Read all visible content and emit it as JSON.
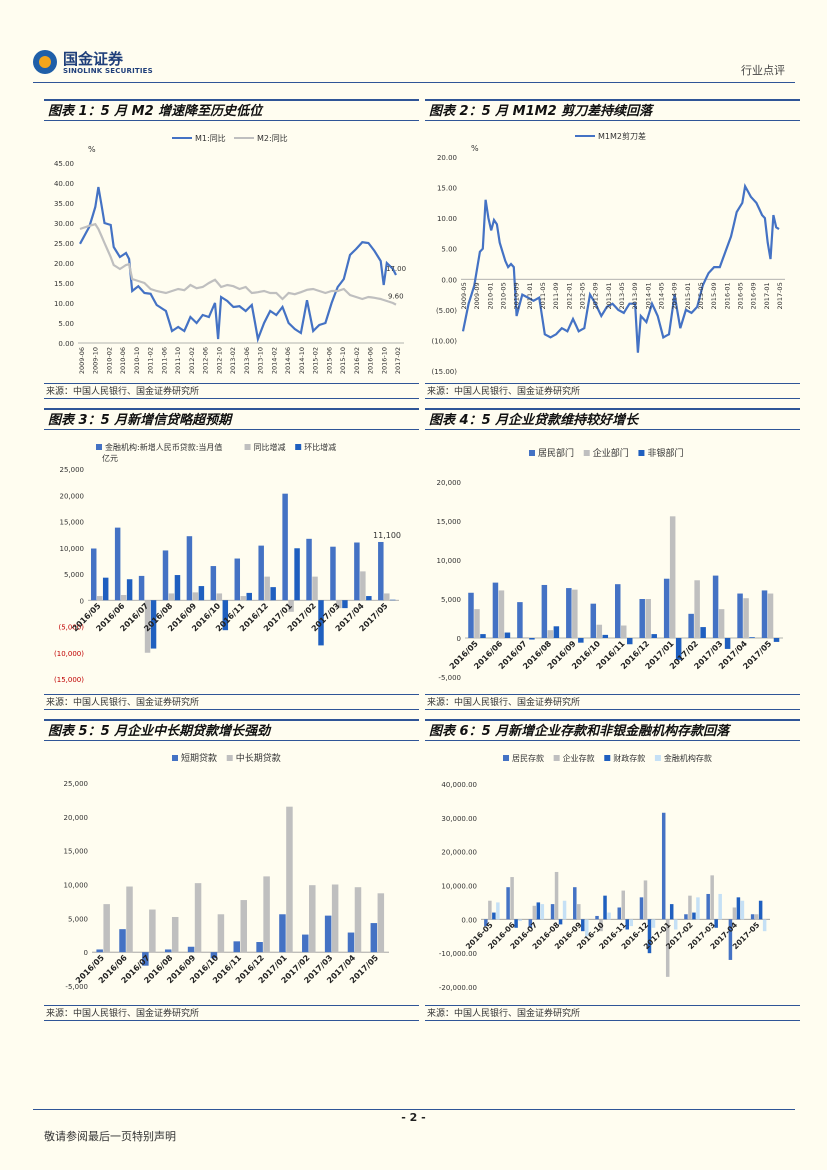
{
  "header": {
    "logo_cn": "国金证券",
    "logo_en": "SINOLINK SECURITIES",
    "doc_type": "行业点评"
  },
  "footer": {
    "page_number": "- 2 -",
    "disclaimer": "敬请参阅最后一页特别声明"
  },
  "source_text": "来源：中国人民银行、国金证券研究所",
  "panels": [
    {
      "title": "图表 1：5 月 M2 增速降至历史低位"
    },
    {
      "title": "图表 2：5 月 M1M2 剪刀差持续回落"
    },
    {
      "title": "图表 3：5 月新增信贷略超预期"
    },
    {
      "title": "图表 4：5 月企业贷款维持较好增长"
    },
    {
      "title": "图表 5：5 月企业中长期贷款增长强劲"
    },
    {
      "title": "图表 6：5 月新增企业存款和非银金融机构存款回落"
    }
  ],
  "chart_data": [
    {
      "type": "line",
      "unit": "%",
      "series_names": [
        "M1:同比",
        "M2:同比"
      ],
      "colors": [
        "#4472c4",
        "#bfbfbf"
      ],
      "ylim": [
        0,
        45
      ],
      "yticks": [
        "0.00",
        "5.00",
        "10.00",
        "15.00",
        "20.00",
        "25.00",
        "30.00",
        "35.00",
        "40.00",
        "45.00"
      ],
      "xticks": [
        "2009-06",
        "2009-10",
        "2010-02",
        "2010-06",
        "2010-10",
        "2011-02",
        "2011-06",
        "2011-10",
        "2012-02",
        "2012-06",
        "2012-10",
        "2013-02",
        "2013-06",
        "2013-10",
        "2014-02",
        "2014-06",
        "2014-10",
        "2015-02",
        "2015-06",
        "2015-10",
        "2016-02",
        "2016-06",
        "2016-10",
        "2017-02"
      ],
      "m1_keypoints": [
        [
          0,
          24.8
        ],
        [
          3,
          29
        ],
        [
          5,
          34
        ],
        [
          6,
          39
        ],
        [
          8,
          30
        ],
        [
          10,
          29.5
        ],
        [
          11,
          24
        ],
        [
          13,
          21.5
        ],
        [
          15,
          22.5
        ],
        [
          16,
          21
        ],
        [
          17,
          13
        ],
        [
          19,
          14.2
        ],
        [
          21,
          12.5
        ],
        [
          23,
          12.3
        ],
        [
          25,
          9.5
        ],
        [
          28,
          8
        ],
        [
          30,
          3
        ],
        [
          32,
          4
        ],
        [
          34,
          3
        ],
        [
          36,
          6.5
        ],
        [
          38,
          5
        ],
        [
          40,
          7
        ],
        [
          42,
          6.5
        ],
        [
          44,
          10
        ],
        [
          45,
          1
        ],
        [
          46,
          11.5
        ],
        [
          48,
          10.5
        ],
        [
          50,
          9
        ],
        [
          52,
          9.2
        ],
        [
          54,
          8
        ],
        [
          56,
          9.5
        ],
        [
          58,
          1
        ],
        [
          60,
          5
        ],
        [
          62,
          8
        ],
        [
          64,
          7
        ],
        [
          66,
          9
        ],
        [
          68,
          5
        ],
        [
          70,
          3.5
        ],
        [
          72,
          2.5
        ],
        [
          74,
          10.7
        ],
        [
          76,
          3
        ],
        [
          78,
          4.5
        ],
        [
          80,
          5
        ],
        [
          82,
          10
        ],
        [
          84,
          14
        ],
        [
          86,
          16
        ],
        [
          88,
          22
        ],
        [
          90,
          23.5
        ],
        [
          92,
          25.2
        ],
        [
          94,
          25
        ],
        [
          96,
          23
        ],
        [
          98,
          20.5
        ],
        [
          99,
          14.5
        ],
        [
          100,
          20
        ],
        [
          102,
          18.5
        ],
        [
          103,
          17
        ]
      ],
      "m2_keypoints": [
        [
          0,
          28.5
        ],
        [
          3,
          29.3
        ],
        [
          5,
          29.7
        ],
        [
          6,
          28.5
        ],
        [
          8,
          25
        ],
        [
          10,
          21.5
        ],
        [
          11,
          19.5
        ],
        [
          13,
          18.5
        ],
        [
          15,
          19.5
        ],
        [
          16,
          19.7
        ],
        [
          17,
          16
        ],
        [
          19,
          15.5
        ],
        [
          21,
          15
        ],
        [
          23,
          13.5
        ],
        [
          25,
          13
        ],
        [
          28,
          12.5
        ],
        [
          30,
          13
        ],
        [
          32,
          13.5
        ],
        [
          34,
          13.2
        ],
        [
          36,
          14.5
        ],
        [
          38,
          13.7
        ],
        [
          40,
          14
        ],
        [
          42,
          15
        ],
        [
          44,
          15.8
        ],
        [
          46,
          14
        ],
        [
          48,
          14.5
        ],
        [
          50,
          14.2
        ],
        [
          52,
          13.5
        ],
        [
          54,
          14
        ],
        [
          56,
          12.5
        ],
        [
          58,
          12.7
        ],
        [
          60,
          13
        ],
        [
          62,
          12.5
        ],
        [
          64,
          12.5
        ],
        [
          66,
          11
        ],
        [
          68,
          12.5
        ],
        [
          70,
          12.2
        ],
        [
          72,
          12.7
        ],
        [
          74,
          13.3
        ],
        [
          76,
          13.5
        ],
        [
          78,
          13
        ],
        [
          80,
          12.5
        ],
        [
          82,
          13
        ],
        [
          84,
          13
        ],
        [
          86,
          13.5
        ],
        [
          88,
          12
        ],
        [
          90,
          11.5
        ],
        [
          92,
          11
        ],
        [
          94,
          11.5
        ],
        [
          96,
          11.3
        ],
        [
          98,
          11
        ],
        [
          100,
          10.5
        ],
        [
          102,
          10
        ],
        [
          103,
          9.6
        ]
      ],
      "last_labels": [
        "17.00",
        "9.60"
      ]
    },
    {
      "type": "line",
      "unit": "%",
      "series_names": [
        "M1M2剪刀差"
      ],
      "colors": [
        "#4472c4"
      ],
      "ylim": [
        -15,
        20
      ],
      "yticks": [
        "(15.00)",
        "(10.00)",
        "(5.00)",
        "0.00",
        "5.00",
        "10.00",
        "15.00",
        "20.00"
      ],
      "xticks": [
        "2009-05",
        "2009-09",
        "2010-01",
        "2010-05",
        "2010-09",
        "2011-01",
        "2011-05",
        "2011-09",
        "2012-01",
        "2012-05",
        "2012-09",
        "2013-01",
        "2013-05",
        "2013-09",
        "2014-01",
        "2014-05",
        "2014-09",
        "2015-01",
        "2015-05",
        "2015-09",
        "2016-01",
        "2016-05",
        "2016-09",
        "2017-01",
        "2017-05"
      ],
      "keypoints": [
        [
          0,
          -8.5
        ],
        [
          2,
          -4
        ],
        [
          4,
          -1
        ],
        [
          6,
          4.5
        ],
        [
          7,
          5
        ],
        [
          8,
          13
        ],
        [
          9,
          10
        ],
        [
          10,
          8
        ],
        [
          11,
          9.7
        ],
        [
          12,
          9
        ],
        [
          13,
          6
        ],
        [
          15,
          3
        ],
        [
          16,
          2
        ],
        [
          17,
          2.5
        ],
        [
          18,
          2
        ],
        [
          19,
          -6
        ],
        [
          21,
          -2.5
        ],
        [
          23,
          -3
        ],
        [
          25,
          -3.5
        ],
        [
          27,
          -3
        ],
        [
          29,
          -9
        ],
        [
          31,
          -9.5
        ],
        [
          33,
          -9
        ],
        [
          35,
          -8
        ],
        [
          37,
          -8.5
        ],
        [
          39,
          -6.5
        ],
        [
          41,
          -8.5
        ],
        [
          43,
          -8
        ],
        [
          45,
          -2.5
        ],
        [
          47,
          -4
        ],
        [
          49,
          -6
        ],
        [
          51,
          -4.5
        ],
        [
          53,
          -4
        ],
        [
          55,
          -5
        ],
        [
          57,
          -5.5
        ],
        [
          59,
          -4
        ],
        [
          61,
          -4
        ],
        [
          62,
          -12
        ],
        [
          63,
          -6
        ],
        [
          65,
          -7
        ],
        [
          67,
          -4
        ],
        [
          69,
          -6
        ],
        [
          71,
          -9.5
        ],
        [
          73,
          -9
        ],
        [
          75,
          -2.5
        ],
        [
          77,
          -8
        ],
        [
          79,
          -5
        ],
        [
          81,
          -5.5
        ],
        [
          83,
          -4.5
        ],
        [
          85,
          -1
        ],
        [
          87,
          1
        ],
        [
          89,
          2
        ],
        [
          91,
          2
        ],
        [
          93,
          4.5
        ],
        [
          95,
          7
        ],
        [
          97,
          11
        ],
        [
          99,
          12.5
        ],
        [
          100,
          15.2
        ],
        [
          102,
          13.5
        ],
        [
          104,
          12.5
        ],
        [
          106,
          10.5
        ],
        [
          107,
          10
        ],
        [
          108,
          6
        ],
        [
          109,
          3.3
        ],
        [
          110,
          10.5
        ],
        [
          111,
          8.5
        ],
        [
          112,
          8.2
        ]
      ]
    },
    {
      "type": "bar",
      "unit": "亿元",
      "legend": [
        "金融机构:新增人民币贷款:当月值",
        "同比增减",
        "环比增减"
      ],
      "colors": [
        "#4472c4",
        "#bfbfbf",
        "#1f5fbf"
      ],
      "ylim": [
        -15000,
        25000
      ],
      "yticks": [
        "(15,000)",
        "(10,000)",
        "(5,000)",
        "0",
        "5,000",
        "10,000",
        "15,000",
        "20,000",
        "25,000"
      ],
      "categories": [
        "2016/05",
        "2016/06",
        "2016/07",
        "2016/08",
        "2016/09",
        "2016/10",
        "2016/11",
        "2016/12",
        "2017/01",
        "2017/02",
        "2017/03",
        "2017/04",
        "2017/05"
      ],
      "series": [
        {
          "name": "金融机构:新增人民币贷款:当月值",
          "values": [
            9855,
            13834,
            4636,
            9487,
            12200,
            6513,
            7946,
            10406,
            20300,
            11700,
            10200,
            11000,
            11100
          ]
        },
        {
          "name": "同比增减",
          "values": [
            800,
            1000,
            -10000,
            1300,
            1500,
            1300,
            800,
            4500,
            -2200,
            4500,
            -1500,
            5500,
            1300
          ]
        },
        {
          "name": "环比增减",
          "values": [
            4300,
            4000,
            -9200,
            4800,
            2700,
            -5700,
            1400,
            2500,
            9900,
            -8600,
            -1500,
            800,
            100
          ]
        }
      ],
      "annotation": "11,100"
    },
    {
      "type": "bar",
      "legend": [
        "居民部门",
        "企业部门",
        "非银部门"
      ],
      "colors": [
        "#4472c4",
        "#bfbfbf",
        "#1f5fbf"
      ],
      "ylim": [
        -5000,
        20000
      ],
      "yticks": [
        "-5,000",
        "0",
        "5,000",
        "10,000",
        "15,000",
        "20,000"
      ],
      "categories": [
        "2016/05",
        "2016/06",
        "2016/07",
        "2016/08",
        "2016/09",
        "2016/10",
        "2016/11",
        "2016/12",
        "2017/01",
        "2017/02",
        "2017/03",
        "2017/04",
        "2017/05"
      ],
      "series": [
        {
          "name": "居民部门",
          "values": [
            5800,
            7100,
            4600,
            6800,
            6400,
            4400,
            6900,
            5000,
            7600,
            3100,
            8000,
            5700,
            6100
          ]
        },
        {
          "name": "企业部门",
          "values": [
            3700,
            6100,
            100,
            1000,
            6200,
            1700,
            1600,
            5000,
            15600,
            7400,
            3700,
            5100,
            5700
          ]
        },
        {
          "name": "非银部门",
          "values": [
            500,
            700,
            -200,
            1500,
            -600,
            400,
            -800,
            500,
            -2800,
            1400,
            -1400,
            100,
            -500
          ]
        }
      ]
    },
    {
      "type": "bar",
      "legend": [
        "短期贷款",
        "中长期贷款"
      ],
      "colors": [
        "#4472c4",
        "#bfbfbf"
      ],
      "ylim": [
        -5000,
        25000
      ],
      "yticks": [
        "-5,000",
        "0",
        "5,000",
        "10,000",
        "15,000",
        "20,000",
        "25,000"
      ],
      "categories": [
        "2016/05",
        "2016/06",
        "2016/07",
        "2016/08",
        "2016/09",
        "2016/10",
        "2016/11",
        "2016/12",
        "2017/01",
        "2017/02",
        "2017/03",
        "2017/04",
        "2017/05"
      ],
      "series": [
        {
          "name": "短期贷款",
          "values": [
            400,
            3400,
            -2000,
            400,
            800,
            -900,
            1600,
            1500,
            5600,
            2600,
            5400,
            2900,
            4300
          ]
        },
        {
          "name": "中长期贷款",
          "values": [
            7100,
            9700,
            6300,
            5200,
            10200,
            5600,
            7700,
            11200,
            21500,
            9900,
            10000,
            9600,
            8700
          ]
        }
      ]
    },
    {
      "type": "bar",
      "legend": [
        "居民存款",
        "企业存款",
        "财政存款",
        "金融机构存款"
      ],
      "colors": [
        "#4472c4",
        "#bfbfbf",
        "#1f5fbf",
        "#c5e0f5"
      ],
      "ylim": [
        -20000,
        40000
      ],
      "yticks": [
        "-20,000.00",
        "-10,000.00",
        "0.00",
        "10,000.00",
        "20,000.00",
        "30,000.00",
        "40,000.00"
      ],
      "categories": [
        "2016-05",
        "2016-06",
        "2016-07",
        "2016-08",
        "2016-09",
        "2016-10",
        "2016-11",
        "2016-12",
        "2017-01",
        "2017-02",
        "2017-03",
        "2017-04",
        "2017-05"
      ],
      "series": [
        {
          "name": "居民存款",
          "values": [
            -2000,
            9500,
            -2500,
            4500,
            9500,
            1000,
            3500,
            6500,
            31500,
            1500,
            7500,
            -12000,
            1500
          ]
        },
        {
          "name": "企业存款",
          "values": [
            5500,
            12500,
            4000,
            14000,
            4500,
            -3500,
            8500,
            11500,
            -17000,
            7000,
            13000,
            3500,
            1500
          ]
        },
        {
          "name": "财政存款",
          "values": [
            2000,
            -2500,
            5000,
            -1500,
            -3500,
            7000,
            -3000,
            -10000,
            4500,
            2000,
            -2500,
            6500,
            5500
          ]
        },
        {
          "name": "金融机构存款",
          "values": [
            5000,
            -500,
            4500,
            5500,
            -5000,
            2000,
            -2000,
            -2500,
            -3000,
            6500,
            7500,
            5500,
            -3500
          ]
        }
      ]
    }
  ]
}
